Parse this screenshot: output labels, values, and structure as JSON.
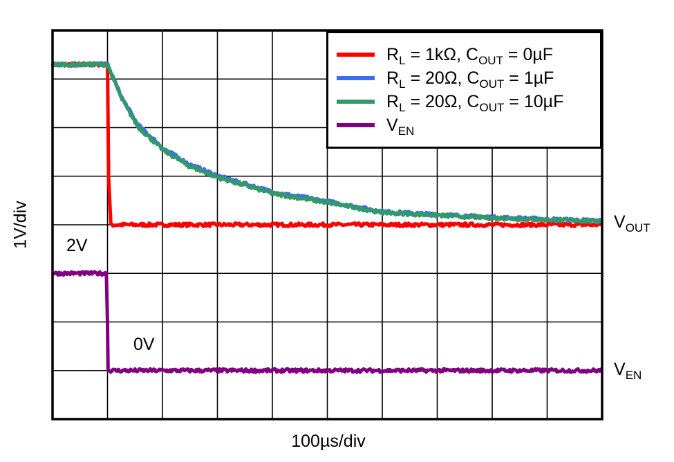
{
  "chart_data": {
    "type": "line",
    "title": "",
    "xlabel": "100µs/div",
    "ylabel": "1V/div",
    "x_unit": "µs",
    "y_unit": "div",
    "xlim": [
      0,
      1000
    ],
    "ylim": [
      0,
      8
    ],
    "grid": true,
    "grid_divisions": {
      "x": 10,
      "y": 8
    },
    "legend_position": "top-right",
    "series": [
      {
        "name": "RL = 1kΩ, COUT = 0µF",
        "color": "#ff0000",
        "points": [
          [
            0,
            7.3
          ],
          [
            100,
            7.3
          ],
          [
            102,
            5.0
          ],
          [
            104,
            4.5
          ],
          [
            106,
            4.0
          ],
          [
            1000,
            4.0
          ]
        ]
      },
      {
        "name": "RL = 20Ω, COUT = 1µF",
        "color": "#3a6df0",
        "points": [
          [
            0,
            7.3
          ],
          [
            100,
            7.3
          ],
          [
            126,
            6.62
          ],
          [
            155,
            6.06
          ],
          [
            202,
            5.57
          ],
          [
            248,
            5.25
          ],
          [
            302,
            5.0
          ],
          [
            402,
            4.67
          ],
          [
            505,
            4.47
          ],
          [
            601,
            4.27
          ],
          [
            802,
            4.15
          ],
          [
            1000,
            4.08
          ]
        ]
      },
      {
        "name": "RL = 20Ω, COUT = 10µF",
        "color": "#339966",
        "points": [
          [
            0,
            7.3
          ],
          [
            100,
            7.3
          ],
          [
            126,
            6.59
          ],
          [
            155,
            6.02
          ],
          [
            202,
            5.53
          ],
          [
            248,
            5.21
          ],
          [
            302,
            4.97
          ],
          [
            402,
            4.64
          ],
          [
            505,
            4.45
          ],
          [
            601,
            4.25
          ],
          [
            802,
            4.14
          ],
          [
            1000,
            4.07
          ]
        ]
      },
      {
        "name": "VEN",
        "color": "#800080",
        "points": [
          [
            0,
            3.0
          ],
          [
            98,
            3.0
          ],
          [
            100,
            2.0
          ],
          [
            101,
            1.0
          ],
          [
            1000,
            1.0
          ]
        ]
      }
    ],
    "annotations": {
      "ven_high": "2V",
      "ven_low": "0V",
      "vout_label": {
        "main": "V",
        "sub": "OUT"
      },
      "ven_label": {
        "main": "V",
        "sub": "EN"
      }
    }
  },
  "legend": {
    "entries": [
      {
        "a": "R",
        "a_sub": "L",
        "b": " = 1kΩ, C",
        "b_sub": "OUT",
        "c": " = 0µF",
        "color": "#ff0000"
      },
      {
        "a": "R",
        "a_sub": "L",
        "b": " = 20Ω, C",
        "b_sub": "OUT",
        "c": " = 1µF",
        "color": "#3a6df0"
      },
      {
        "a": "R",
        "a_sub": "L",
        "b": " = 20Ω, C",
        "b_sub": "OUT",
        "c": " = 10µF",
        "color": "#339966"
      },
      {
        "a": "V",
        "a_sub": "EN",
        "b": "",
        "b_sub": "",
        "c": "",
        "color": "#800080"
      }
    ]
  }
}
